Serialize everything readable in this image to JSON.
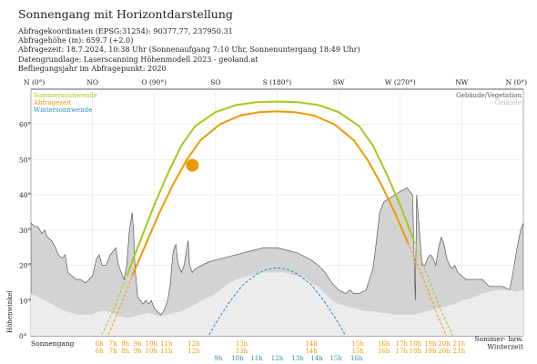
{
  "header": {
    "title": "Sonnengang mit Horizontdarstellung",
    "lines": [
      "Abfragekoordinaten (EPSG:31254): 90377.77, 237950.31",
      "Abfragehöhe (m): 659.7 (+2.0)",
      "Abfragezeit: 18.7.2024, 10:38 Uhr (Sonnenaufgang 7:10 Uhr,  Sonnenuntergang 18:49 Uhr)",
      "Datengrundlage: Laserscanning Höhenmodell 2023 - geoland.at",
      "Befliegungsjahr im Abfragepunkt: 2020"
    ]
  },
  "chart_data": {
    "type": "line",
    "xlabel": "",
    "ylabel": "Höhenwinkel",
    "xlim": [
      0,
      360
    ],
    "ylim": [
      0,
      70
    ],
    "grid": true,
    "direction_labels": [
      {
        "label": "N (0°)",
        "az": 0
      },
      {
        "label": "NO",
        "az": 45
      },
      {
        "label": "O (90°)",
        "az": 90
      },
      {
        "label": "SO",
        "az": 135
      },
      {
        "label": "S (180°)",
        "az": 180
      },
      {
        "label": "SW",
        "az": 225
      },
      {
        "label": "W (270°)",
        "az": 270
      },
      {
        "label": "NW",
        "az": 315
      },
      {
        "label": "N (0°)",
        "az": 360
      }
    ],
    "y_ticks": [
      {
        "label": "0°",
        "value": 0
      },
      {
        "label": "10°",
        "value": 10
      },
      {
        "label": "20°",
        "value": 20
      },
      {
        "label": "30°",
        "value": 30
      },
      {
        "label": "40°",
        "value": 40
      },
      {
        "label": "50°",
        "value": 50
      },
      {
        "label": "60°",
        "value": 60
      }
    ],
    "legend_left": [
      {
        "label": "Sommersonnwende",
        "color": "#a8c81e"
      },
      {
        "label": "Abfragezeit",
        "color": "#f09a00"
      },
      {
        "label": "Wintersonnwende",
        "color": "#2a8fb8"
      }
    ],
    "legend_right": [
      {
        "label": "Gebäude/Vegetation",
        "color": "#555555"
      },
      {
        "label": "Gelände",
        "color": "#bbbbbb"
      }
    ],
    "bottom_left_label": "Sonnengang",
    "bottom_right_label": [
      "Sommer- bzw.",
      "Winterzeit"
    ],
    "series": [
      {
        "name": "Sommersonnwende",
        "color": "#a8c81e",
        "points": [
          [
            49,
            -2
          ],
          [
            60,
            7
          ],
          [
            70,
            17
          ],
          [
            80,
            27
          ],
          [
            90,
            37
          ],
          [
            100,
            46
          ],
          [
            110,
            54
          ],
          [
            120,
            59.5
          ],
          [
            135,
            63.5
          ],
          [
            150,
            65.5
          ],
          [
            165,
            66.3
          ],
          [
            180,
            66.5
          ],
          [
            195,
            66.3
          ],
          [
            210,
            65.5
          ],
          [
            225,
            63.5
          ],
          [
            240,
            59.5
          ],
          [
            250,
            54
          ],
          [
            260,
            46
          ],
          [
            270,
            37
          ],
          [
            280,
            27
          ],
          [
            290,
            17
          ],
          [
            300,
            7
          ],
          [
            311,
            -2
          ]
        ]
      },
      {
        "name": "Abfragezeit",
        "color": "#f09a00",
        "points": [
          [
            54,
            -2
          ],
          [
            64,
            7
          ],
          [
            74,
            17
          ],
          [
            84,
            26
          ],
          [
            94,
            35
          ],
          [
            104,
            43
          ],
          [
            114,
            50
          ],
          [
            124,
            55.5
          ],
          [
            138,
            60
          ],
          [
            153,
            62.5
          ],
          [
            167,
            63.5
          ],
          [
            180,
            63.7
          ],
          [
            193,
            63.5
          ],
          [
            207,
            62.5
          ],
          [
            222,
            60
          ],
          [
            236,
            55.5
          ],
          [
            246,
            50
          ],
          [
            256,
            43
          ],
          [
            266,
            35
          ],
          [
            276,
            26
          ],
          [
            286,
            17
          ],
          [
            296,
            7
          ],
          [
            306,
            -2
          ]
        ]
      },
      {
        "name": "Wintersonnwende",
        "color": "#2a8fb8",
        "points": [
          [
            127,
            -2
          ],
          [
            135,
            3.5
          ],
          [
            145,
            9.5
          ],
          [
            155,
            14.5
          ],
          [
            165,
            17.5
          ],
          [
            172,
            18.8
          ],
          [
            180,
            19.3
          ],
          [
            188,
            18.8
          ],
          [
            195,
            17.5
          ],
          [
            205,
            14.5
          ],
          [
            215,
            9.5
          ],
          [
            225,
            3.5
          ],
          [
            233,
            -2
          ]
        ]
      }
    ],
    "sun_position": {
      "az": 118,
      "el": 48.4,
      "color": "#f09a00"
    },
    "terrain_gelaende": [
      [
        0,
        12
      ],
      [
        5,
        11
      ],
      [
        10,
        10
      ],
      [
        15,
        9
      ],
      [
        20,
        8
      ],
      [
        25,
        7
      ],
      [
        30,
        6.5
      ],
      [
        35,
        6
      ],
      [
        40,
        6
      ],
      [
        45,
        6
      ],
      [
        50,
        7
      ],
      [
        55,
        7
      ],
      [
        60,
        6.5
      ],
      [
        65,
        5.5
      ],
      [
        70,
        5
      ],
      [
        75,
        5.5
      ],
      [
        80,
        6
      ],
      [
        85,
        6.5
      ],
      [
        90,
        6
      ],
      [
        95,
        5.5
      ],
      [
        100,
        6
      ],
      [
        110,
        7
      ],
      [
        115,
        8
      ],
      [
        120,
        9
      ],
      [
        125,
        10
      ],
      [
        130,
        11
      ],
      [
        135,
        12
      ],
      [
        140,
        13.5
      ],
      [
        145,
        15
      ],
      [
        150,
        16
      ],
      [
        155,
        16.5
      ],
      [
        160,
        17
      ],
      [
        165,
        17.5
      ],
      [
        170,
        18
      ],
      [
        175,
        18
      ],
      [
        180,
        18
      ],
      [
        185,
        18
      ],
      [
        190,
        17.5
      ],
      [
        195,
        17
      ],
      [
        200,
        16.5
      ],
      [
        205,
        15
      ],
      [
        210,
        14
      ],
      [
        215,
        12
      ],
      [
        220,
        10
      ],
      [
        225,
        9
      ],
      [
        230,
        8.5
      ],
      [
        235,
        8
      ],
      [
        240,
        7.5
      ],
      [
        245,
        7
      ],
      [
        250,
        7
      ],
      [
        255,
        6.5
      ],
      [
        260,
        6.5
      ],
      [
        265,
        6
      ],
      [
        270,
        6
      ],
      [
        275,
        6
      ],
      [
        280,
        6
      ],
      [
        285,
        6.5
      ],
      [
        290,
        7
      ],
      [
        295,
        7.5
      ],
      [
        300,
        8
      ],
      [
        305,
        8.5
      ],
      [
        310,
        9
      ],
      [
        315,
        10
      ],
      [
        320,
        10.5
      ],
      [
        325,
        11
      ],
      [
        330,
        12
      ],
      [
        335,
        12.5
      ],
      [
        340,
        13
      ],
      [
        345,
        13
      ],
      [
        350,
        13
      ],
      [
        355,
        12.5
      ],
      [
        360,
        13
      ]
    ],
    "terrain_obstacles": [
      [
        0,
        32
      ],
      [
        3,
        31
      ],
      [
        5,
        31
      ],
      [
        8,
        29
      ],
      [
        10,
        30
      ],
      [
        12,
        28
      ],
      [
        15,
        27
      ],
      [
        18,
        25
      ],
      [
        20,
        23
      ],
      [
        23,
        22
      ],
      [
        25,
        23
      ],
      [
        27,
        18
      ],
      [
        30,
        17
      ],
      [
        33,
        16
      ],
      [
        36,
        16
      ],
      [
        40,
        15
      ],
      [
        45,
        17
      ],
      [
        48,
        22
      ],
      [
        50,
        23
      ],
      [
        52,
        20
      ],
      [
        55,
        20
      ],
      [
        58,
        23
      ],
      [
        62,
        25
      ],
      [
        64,
        20
      ],
      [
        66,
        18
      ],
      [
        68,
        16
      ],
      [
        70,
        20
      ],
      [
        72,
        30
      ],
      [
        74,
        35
      ],
      [
        75,
        30
      ],
      [
        76,
        20
      ],
      [
        78,
        11
      ],
      [
        80,
        10
      ],
      [
        82,
        9
      ],
      [
        84,
        10
      ],
      [
        86,
        9
      ],
      [
        88,
        10
      ],
      [
        90,
        8
      ],
      [
        92,
        7
      ],
      [
        95,
        6
      ],
      [
        97,
        7
      ],
      [
        100,
        10
      ],
      [
        102,
        15
      ],
      [
        103,
        20
      ],
      [
        104,
        24
      ],
      [
        106,
        26
      ],
      [
        107,
        22
      ],
      [
        108,
        20
      ],
      [
        110,
        18
      ],
      [
        112,
        20
      ],
      [
        114,
        25
      ],
      [
        115,
        27
      ],
      [
        116,
        20
      ],
      [
        118,
        18
      ],
      [
        120,
        19
      ],
      [
        125,
        20
      ],
      [
        130,
        21
      ],
      [
        135,
        21.5
      ],
      [
        140,
        22
      ],
      [
        145,
        22.5
      ],
      [
        150,
        23
      ],
      [
        155,
        23.5
      ],
      [
        160,
        24
      ],
      [
        165,
        24.5
      ],
      [
        170,
        25
      ],
      [
        175,
        25
      ],
      [
        180,
        25
      ],
      [
        185,
        24.5
      ],
      [
        190,
        24
      ],
      [
        195,
        23.5
      ],
      [
        200,
        22.5
      ],
      [
        205,
        21.5
      ],
      [
        210,
        20
      ],
      [
        215,
        18
      ],
      [
        220,
        15
      ],
      [
        225,
        13
      ],
      [
        230,
        12
      ],
      [
        233,
        13
      ],
      [
        236,
        12
      ],
      [
        240,
        12
      ],
      [
        245,
        13
      ],
      [
        250,
        19
      ],
      [
        252,
        25
      ],
      [
        255,
        35
      ],
      [
        258,
        38
      ],
      [
        262,
        39
      ],
      [
        266,
        40
      ],
      [
        270,
        41
      ],
      [
        275,
        42
      ],
      [
        279,
        40
      ],
      [
        281,
        10
      ],
      [
        282,
        40
      ],
      [
        284,
        30
      ],
      [
        286,
        20
      ],
      [
        288,
        20
      ],
      [
        290,
        22
      ],
      [
        292,
        23
      ],
      [
        294,
        22
      ],
      [
        296,
        20
      ],
      [
        298,
        25
      ],
      [
        300,
        28
      ],
      [
        302,
        26
      ],
      [
        304,
        22
      ],
      [
        306,
        20
      ],
      [
        308,
        19
      ],
      [
        310,
        20
      ],
      [
        312,
        18
      ],
      [
        315,
        17
      ],
      [
        318,
        16
      ],
      [
        320,
        16
      ],
      [
        323,
        16
      ],
      [
        326,
        16
      ],
      [
        330,
        16
      ],
      [
        335,
        14
      ],
      [
        340,
        14
      ],
      [
        345,
        14
      ],
      [
        350,
        13
      ],
      [
        352,
        17
      ],
      [
        355,
        24
      ],
      [
        358,
        30
      ],
      [
        360,
        32
      ]
    ],
    "time_rows": [
      {
        "color": "#f09a00",
        "labels": [
          [
            "6h",
            50
          ],
          [
            "7h",
            60
          ],
          [
            "8h",
            69
          ],
          [
            "9h",
            78
          ],
          [
            "10h",
            88
          ],
          [
            "11h",
            99
          ],
          [
            "12h",
            119
          ],
          [
            "13h",
            154
          ],
          [
            "14h",
            205
          ],
          [
            "15h",
            239
          ],
          [
            "16h",
            258
          ],
          [
            "17h",
            271
          ],
          [
            "18h",
            281
          ],
          [
            "19h",
            292
          ],
          [
            "20h",
            302
          ],
          [
            "21h",
            313
          ]
        ]
      },
      {
        "color": "#f09a00",
        "labels": [
          [
            "6h",
            50
          ],
          [
            "7h",
            60
          ],
          [
            "8h",
            69
          ],
          [
            "9h",
            78
          ],
          [
            "10h",
            88
          ],
          [
            "11h",
            99
          ],
          [
            "12h",
            119
          ],
          [
            "13h",
            154
          ],
          [
            "14h",
            205
          ],
          [
            "15h",
            239
          ],
          [
            "16h",
            258
          ],
          [
            "17h",
            271
          ],
          [
            "18h",
            281
          ],
          [
            "19h",
            292
          ],
          [
            "20h",
            302
          ],
          [
            "21h",
            313
          ]
        ]
      },
      {
        "color": "#2a8fb8",
        "labels": [
          [
            "9h",
            137
          ],
          [
            "10h",
            151
          ],
          [
            "11h",
            165
          ],
          [
            "12h",
            180
          ],
          [
            "13h",
            195
          ],
          [
            "14h",
            209
          ],
          [
            "15h",
            223
          ],
          [
            "16h",
            238
          ]
        ]
      }
    ]
  }
}
